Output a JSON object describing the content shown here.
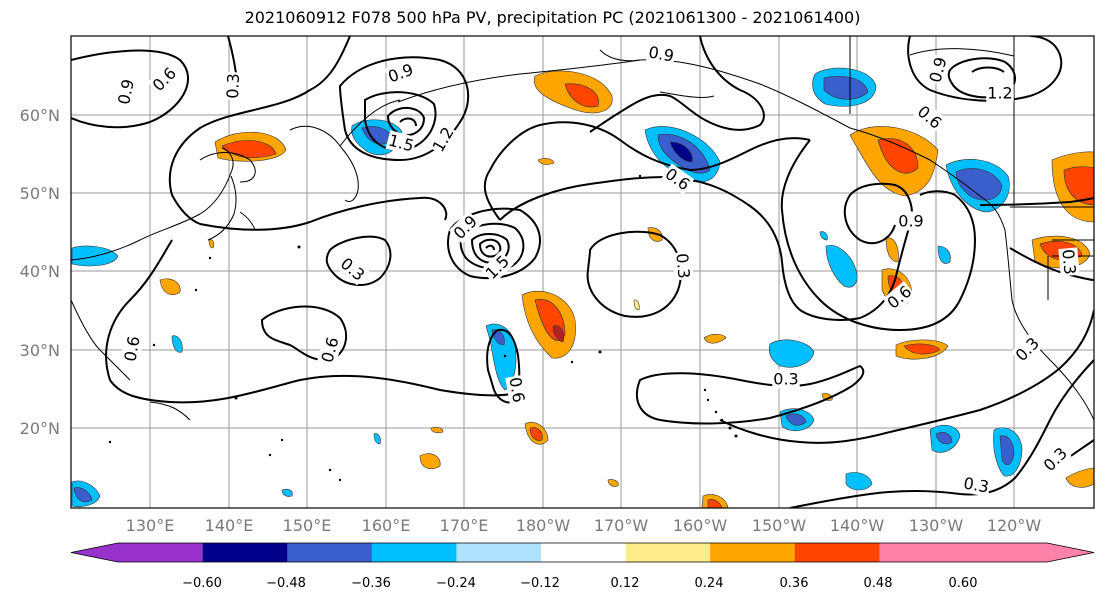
{
  "title": "2021060912 F078 500 hPa PV, precipitation PC (2021061300 - 2021061400)",
  "lat_labels": [
    "60°N",
    "50°N",
    "40°N",
    "30°N",
    "20°N"
  ],
  "lon_labels": [
    "130°E",
    "140°E",
    "150°E",
    "160°E",
    "170°E",
    "180°W",
    "170°W",
    "160°W",
    "150°W",
    "140°W",
    "130°W",
    "120°W"
  ],
  "colorbar": {
    "colors": [
      "#9932cc",
      "#00008b",
      "#3a5fcd",
      "#00bfff",
      "#b0e2ff",
      "#ffffff",
      "#ffec8b",
      "#ffa500",
      "#ff4500",
      "#b22222",
      "#ff82ab"
    ],
    "tick_labels": [
      "−0.60",
      "−0.48",
      "−0.36",
      "−0.24",
      "−0.12",
      "0.12",
      "0.24",
      "0.36",
      "0.48",
      "0.60"
    ]
  },
  "contour_labels": [
    "0.9",
    "0.6",
    "0.3",
    "0.9",
    "1.5",
    "1.2",
    "0.9",
    "0.6",
    "0.9",
    "1.2",
    "0.6",
    "0.9",
    "0.3",
    "0.9",
    "1.5",
    "0.3",
    "0.6",
    "0.6",
    "0.6",
    "0.6",
    "0.3",
    "0.3",
    "0.3",
    "0.3",
    "0.3"
  ]
}
